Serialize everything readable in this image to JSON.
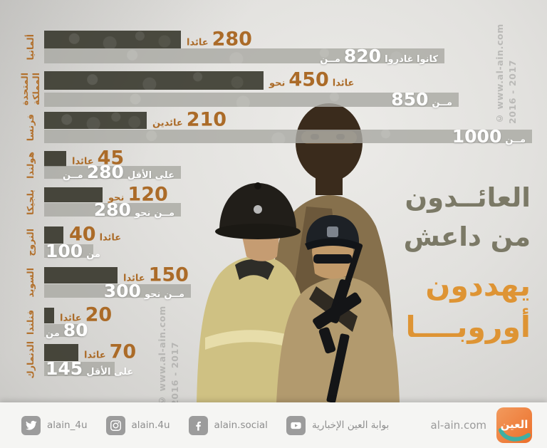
{
  "title": {
    "lines": [
      {
        "text": "العائــدون",
        "color": "#7b7966"
      },
      {
        "text": "من داعش",
        "color": "#7b7966"
      },
      {
        "text": "يهددون",
        "color": "#de9434"
      },
      {
        "text": "أوروبــــا",
        "color": "#de9434"
      }
    ]
  },
  "watermark": {
    "line1": "© www.al-ain.com",
    "line2": "2016 - 2017"
  },
  "chart_data": {
    "type": "bar",
    "orientation": "horizontal",
    "unit": "persons",
    "legend_note": "dark bar = returned fighters, light bar = total who departed to ISIS",
    "xlim": [
      0,
      1000
    ],
    "categories": [
      "ألمانيا",
      "المملكة المتحدة",
      "فرنسا",
      "هولندا",
      "بلجيكا",
      "النروج",
      "السويد",
      "فنلندا",
      "الدنمارك"
    ],
    "series": [
      {
        "name": "العائدون",
        "values": [
          280,
          450,
          210,
          45,
          120,
          40,
          150,
          20,
          70
        ]
      },
      {
        "name": "الذين غادروا",
        "values": [
          820,
          850,
          1000,
          280,
          280,
          100,
          300,
          80,
          145
        ]
      }
    ],
    "rows": [
      {
        "country_lines": [
          "ألمانيا"
        ],
        "returned": 280,
        "total": 820,
        "returned_parts": [
          {
            "t": "عائدا"
          },
          {
            "t": "280",
            "n": true
          }
        ],
        "total_parts": [
          {
            "t": "مــن"
          },
          {
            "t": "820",
            "n": true
          },
          {
            "t": "كانوا غادروا"
          }
        ]
      },
      {
        "country_lines": [
          "المملكة",
          "المتحدة"
        ],
        "returned": 450,
        "total": 850,
        "returned_parts": [
          {
            "t": "نحو"
          },
          {
            "t": "450",
            "n": true
          },
          {
            "t": "عائدا"
          }
        ],
        "total_parts": [
          {
            "t": "850",
            "n": true
          },
          {
            "t": "مــن"
          }
        ]
      },
      {
        "country_lines": [
          "فرنسا"
        ],
        "returned": 210,
        "total": 1000,
        "returned_parts": [
          {
            "t": "عائدين"
          },
          {
            "t": "210",
            "n": true
          }
        ],
        "total_parts": [
          {
            "t": "1000",
            "n": true
          },
          {
            "t": "مــن"
          }
        ]
      },
      {
        "country_lines": [
          "هولندا"
        ],
        "returned": 45,
        "total": 280,
        "returned_parts": [
          {
            "t": "عائدا"
          },
          {
            "t": "45",
            "n": true
          }
        ],
        "total_parts": [
          {
            "t": "مــن"
          },
          {
            "t": "280",
            "n": true
          },
          {
            "t": "على الأقل"
          }
        ]
      },
      {
        "country_lines": [
          "بلجيكا"
        ],
        "returned": 120,
        "total": 280,
        "returned_parts": [
          {
            "t": "نحو"
          },
          {
            "t": "120",
            "n": true
          }
        ],
        "total_parts": [
          {
            "t": "280",
            "n": true
          },
          {
            "t": "نحو"
          },
          {
            "t": "مــن"
          }
        ]
      },
      {
        "country_lines": [
          "النروج"
        ],
        "returned": 40,
        "total": 100,
        "returned_parts": [
          {
            "t": "40",
            "n": true
          },
          {
            "t": "عائدا"
          }
        ],
        "total_parts": [
          {
            "t": "100",
            "n": true
          },
          {
            "t": "من"
          }
        ]
      },
      {
        "country_lines": [
          "السويد"
        ],
        "returned": 150,
        "total": 300,
        "returned_parts": [
          {
            "t": "عائدا"
          },
          {
            "t": "150",
            "n": true
          }
        ],
        "total_parts": [
          {
            "t": "300",
            "n": true
          },
          {
            "t": "نحو"
          },
          {
            "t": "مــن"
          }
        ]
      },
      {
        "country_lines": [
          "فنلندا"
        ],
        "returned": 20,
        "total": 80,
        "returned_parts": [
          {
            "t": "عائدا"
          },
          {
            "t": "20",
            "n": true
          }
        ],
        "total_parts": [
          {
            "t": "من"
          },
          {
            "t": "80",
            "n": true
          }
        ]
      },
      {
        "country_lines": [
          "الدنمارك"
        ],
        "returned": 70,
        "total": 145,
        "returned_parts": [
          {
            "t": "عائدا"
          },
          {
            "t": "70",
            "n": true
          }
        ],
        "total_parts": [
          {
            "t": "145",
            "n": true
          },
          {
            "t": "على الأقل"
          }
        ]
      }
    ]
  },
  "footer": {
    "social": [
      {
        "network": "twitter",
        "handle": "alain_4u"
      },
      {
        "network": "instagram",
        "handle": "alain.4u"
      },
      {
        "network": "facebook",
        "handle": "alain.social"
      },
      {
        "network": "youtube",
        "handle": "بوابة العين الإخبارية"
      }
    ],
    "site": "al-ain.com",
    "logo_text": "العين"
  },
  "colors": {
    "accent_orange": "#de9434",
    "number_orange": "#ab6b28",
    "label_orange": "#b2702c",
    "title_olive": "#7b7966",
    "dark_bar": "#39382e",
    "light_bar": "#aaaaa4",
    "logo_orange": "#ee7d35",
    "logo_teal": "#3fafa3"
  }
}
